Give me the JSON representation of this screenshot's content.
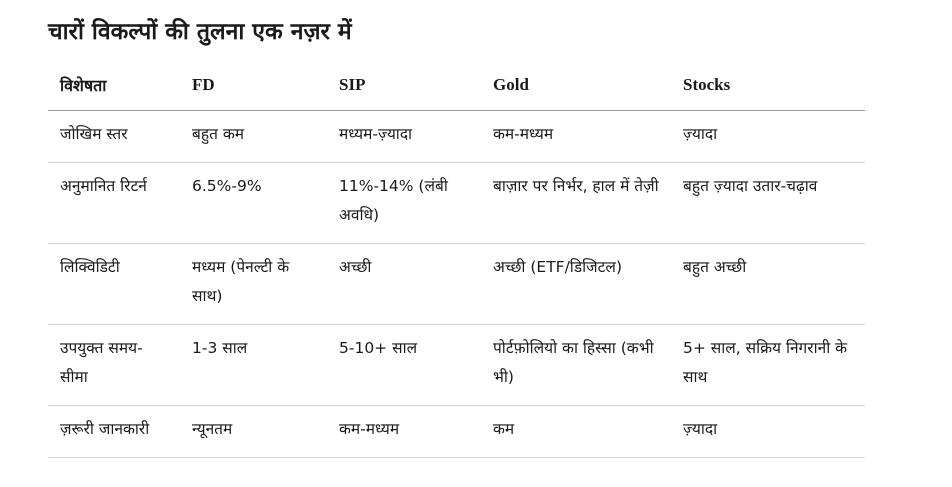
{
  "title": "चारों विकल्पों की तुलना एक नज़र में",
  "table": {
    "headers": [
      "विशेषता",
      "FD",
      "SIP",
      "Gold",
      "Stocks"
    ],
    "rows": [
      [
        "जोखिम स्तर",
        "बहुत कम",
        "मध्यम-ज़्यादा",
        "कम-मध्यम",
        "ज़्यादा"
      ],
      [
        "अनुमानित रिटर्न",
        "6.5%-9%",
        "11%-14% (लंबी अवधि)",
        "बाज़ार पर निर्भर, हाल में तेज़ी",
        "बहुत ज़्यादा उतार-चढ़ाव"
      ],
      [
        "लिक्विडिटी",
        "मध्यम (पेनल्टी के साथ)",
        "अच्छी",
        "अच्छी (ETF/डिजिटल)",
        "बहुत अच्छी"
      ],
      [
        "उपयुक्त समय-सीमा",
        "1-3 साल",
        "5-10+ साल",
        "पोर्टफ़ोलियो का हिस्सा (कभी भी)",
        "5+ साल, सक्रिय निगरानी के साथ"
      ],
      [
        "ज़रूरी जानकारी",
        "न्यूनतम",
        "कम-मध्यम",
        "कम",
        "ज़्यादा"
      ]
    ]
  }
}
